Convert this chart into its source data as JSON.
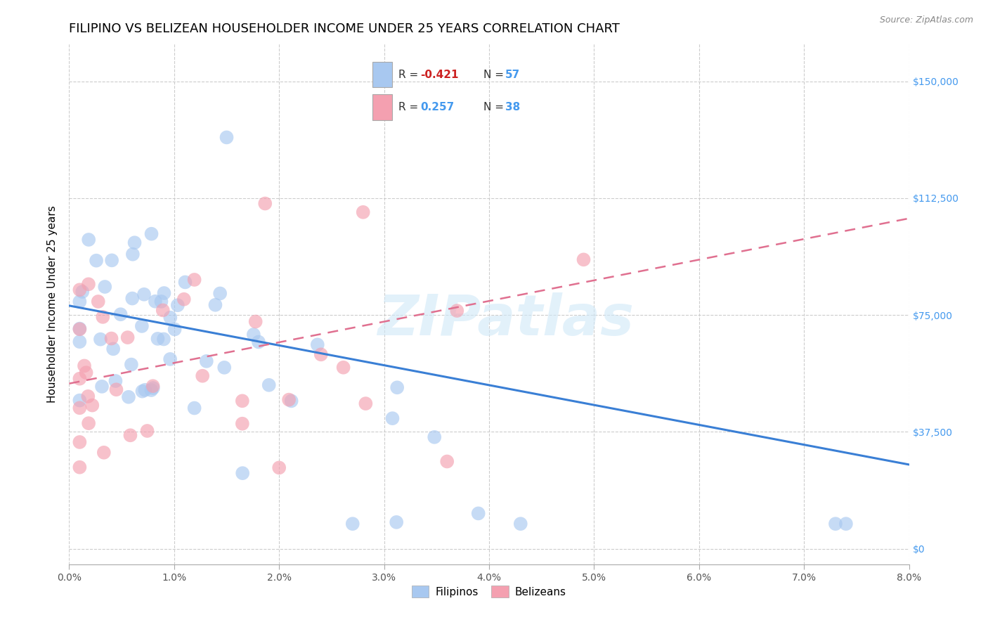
{
  "title": "FILIPINO VS BELIZEAN HOUSEHOLDER INCOME UNDER 25 YEARS CORRELATION CHART",
  "source": "Source: ZipAtlas.com",
  "ylabel": "Householder Income Under 25 years",
  "ytick_labels": [
    "$0",
    "$37,500",
    "$75,000",
    "$112,500",
    "$150,000"
  ],
  "ytick_values": [
    0,
    37500,
    75000,
    112500,
    150000
  ],
  "xlim": [
    0.0,
    0.08
  ],
  "ylim": [
    -5000,
    162000
  ],
  "watermark": "ZIPatlas",
  "legend_filipinos_R": "-0.421",
  "legend_filipinos_N": "57",
  "legend_belizeans_R": "0.257",
  "legend_belizeans_N": "38",
  "filipino_color": "#a8c8f0",
  "belizean_color": "#f4a0b0",
  "filipino_line_color": "#3a7fd5",
  "belizean_line_color": "#e07090",
  "title_fontsize": 13,
  "axis_label_fontsize": 11,
  "tick_fontsize": 10,
  "right_tick_color": "#4499ee"
}
